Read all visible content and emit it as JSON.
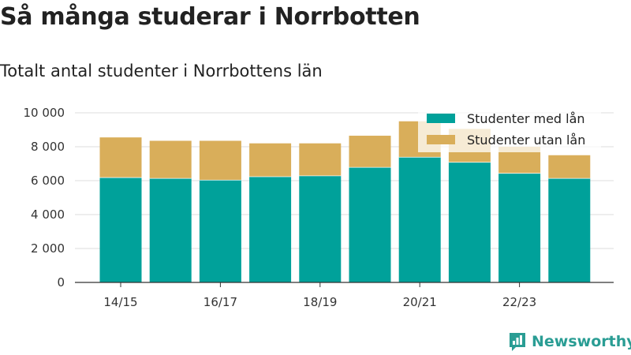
{
  "header": {
    "title": "Så många studerar i Norrbotten",
    "subtitle": "Totalt antal studenter i Norrbottens län"
  },
  "brand": {
    "name": "Newsworthy",
    "color": "#2a9d94"
  },
  "chart_data": {
    "type": "bar",
    "stacked": true,
    "categories": [
      "14/15",
      "15/16",
      "16/17",
      "17/18",
      "18/19",
      "19/20",
      "20/21",
      "21/22",
      "22/23",
      "23/24"
    ],
    "x_tick_labels": [
      "14/15",
      "",
      "16/17",
      "",
      "18/19",
      "",
      "20/21",
      "",
      "22/23",
      ""
    ],
    "series": [
      {
        "name": "Studenter med lån",
        "color": "#00a19a",
        "values": [
          6200,
          6150,
          6050,
          6250,
          6300,
          6800,
          7400,
          7100,
          6450,
          6150
        ]
      },
      {
        "name": "Studenter utan lån",
        "color": "#d9ae5a",
        "values": [
          2350,
          2200,
          2300,
          1950,
          1900,
          1850,
          2100,
          1950,
          1550,
          1350
        ]
      }
    ],
    "ylim": [
      0,
      10000
    ],
    "yticks": [
      0,
      2000,
      4000,
      6000,
      8000,
      10000
    ],
    "ytick_labels": [
      "0",
      "2 000",
      "4 000",
      "6 000",
      "8 000",
      "10 000"
    ],
    "grid": true,
    "legend_position": "top-right"
  }
}
